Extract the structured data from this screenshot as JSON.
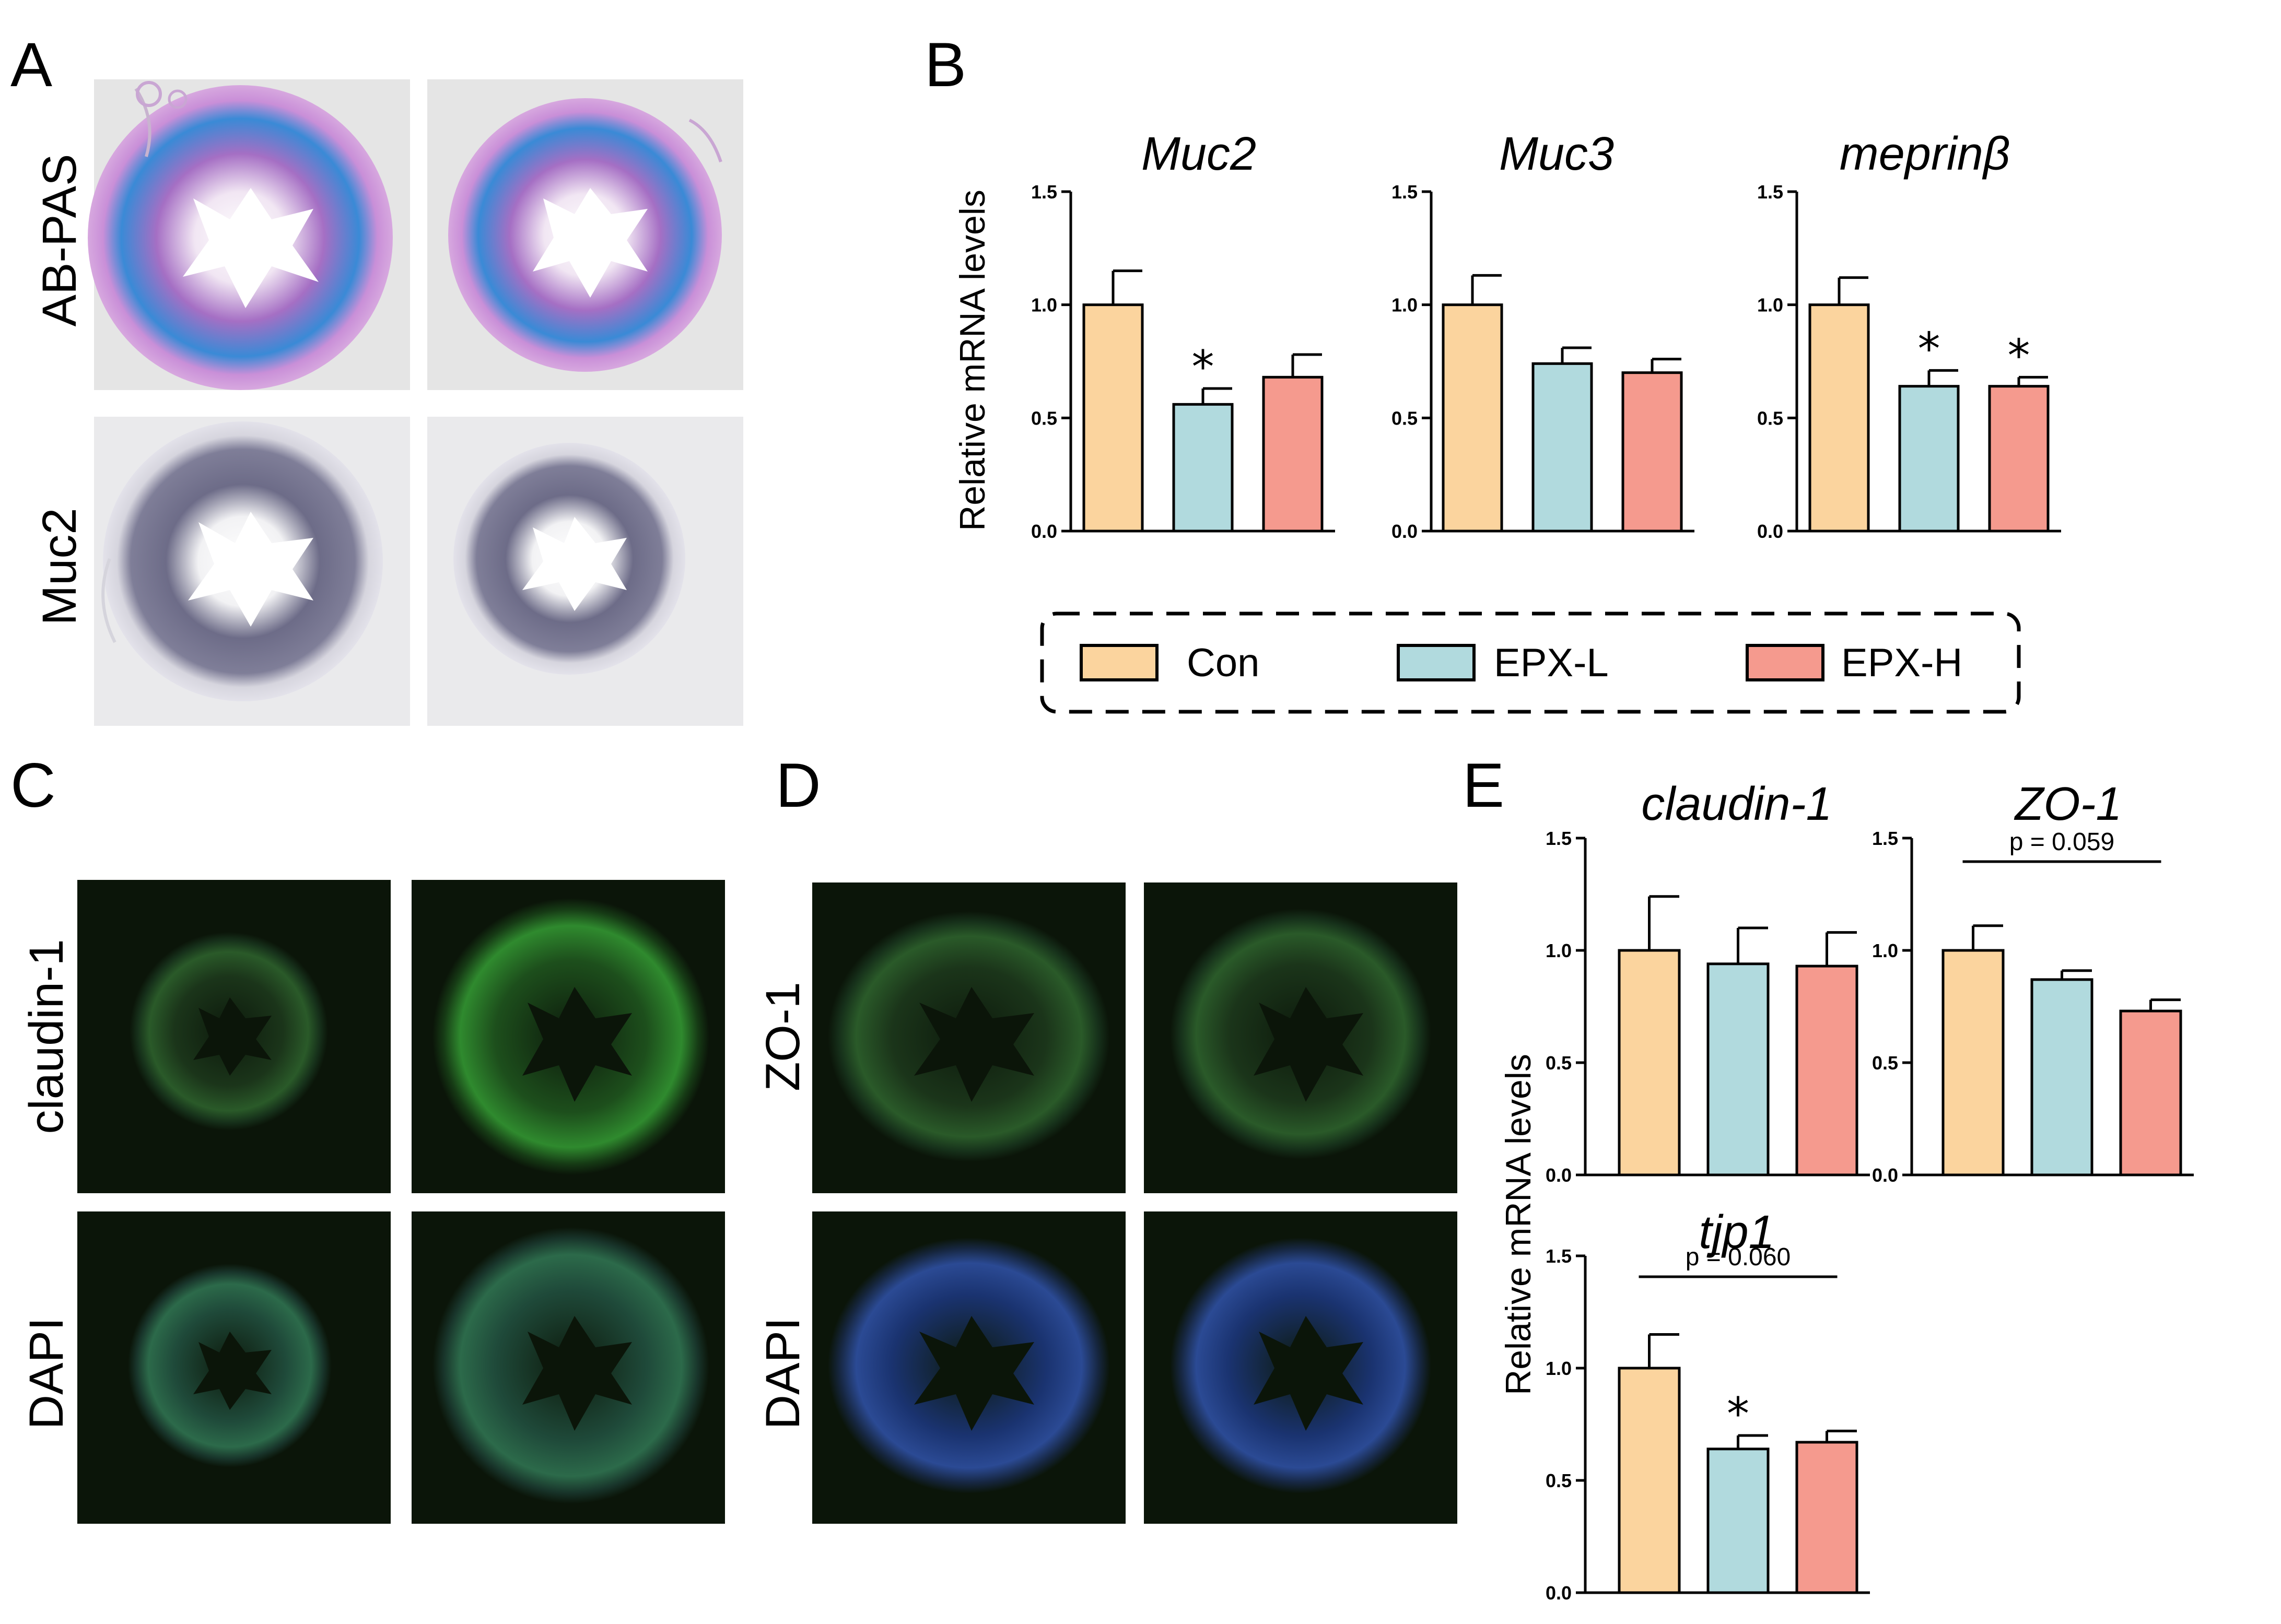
{
  "panels": {
    "A": {
      "letter": "A",
      "rows": [
        "AB-PAS",
        "Muc2"
      ]
    },
    "B": {
      "letter": "B"
    },
    "C": {
      "letter": "C",
      "rows": [
        "claudin-1",
        "DAPI"
      ]
    },
    "D": {
      "letter": "D",
      "rows": [
        "ZO-1",
        "DAPI"
      ]
    },
    "E": {
      "letter": "E"
    }
  },
  "y_axis_label": "Relative mRNA levels",
  "legend": {
    "entries": [
      {
        "label": "Con",
        "color": "#fbd49e"
      },
      {
        "label": "EPX-L",
        "color": "#b1dade"
      },
      {
        "label": "EPX-H",
        "color": "#f59a8e"
      }
    ]
  },
  "colors": {
    "con": "#fbd49e",
    "epxl": "#b1dade",
    "epxh": "#f59a8e",
    "abpas_bg": "#e6e6e6",
    "abpas_tissue": "#d49fdb",
    "abpas_stain": "#2f8ad8",
    "muc2_bg": "#ebebed",
    "muc2_tissue": "#7d7c94",
    "if_bg": "#0b1509",
    "if_green": "#39a13a",
    "if_blue": "#2b5aa8"
  },
  "chart_data": [
    {
      "type": "bar",
      "title": "Muc2",
      "categories": [
        "Con",
        "EPX-L",
        "EPX-H"
      ],
      "values": [
        1.0,
        0.56,
        0.68
      ],
      "errors": [
        0.15,
        0.07,
        0.1
      ],
      "significance": [
        "",
        "*",
        ""
      ],
      "ylim": [
        0,
        1.5
      ],
      "yticks": [
        "0.0",
        "0.5",
        "1.0",
        "1.5"
      ],
      "ylabel": "Relative mRNA levels"
    },
    {
      "type": "bar",
      "title": "Muc3",
      "categories": [
        "Con",
        "EPX-L",
        "EPX-H"
      ],
      "values": [
        1.0,
        0.74,
        0.7
      ],
      "errors": [
        0.13,
        0.07,
        0.06
      ],
      "significance": [
        "",
        "",
        ""
      ],
      "ylim": [
        0,
        1.5
      ],
      "yticks": [
        "0.0",
        "0.5",
        "1.0",
        "1.5"
      ]
    },
    {
      "type": "bar",
      "title": "meprinβ",
      "categories": [
        "Con",
        "EPX-L",
        "EPX-H"
      ],
      "values": [
        1.0,
        0.64,
        0.64
      ],
      "errors": [
        0.12,
        0.07,
        0.04
      ],
      "significance": [
        "",
        "*",
        "*"
      ],
      "ylim": [
        0,
        1.5
      ],
      "yticks": [
        "0.0",
        "0.5",
        "1.0",
        "1.5"
      ]
    },
    {
      "type": "bar",
      "title": "claudin-1",
      "categories": [
        "Con",
        "EPX-L",
        "EPX-H"
      ],
      "values": [
        1.0,
        0.94,
        0.93
      ],
      "errors": [
        0.24,
        0.16,
        0.15
      ],
      "significance": [
        "",
        "",
        ""
      ],
      "ylim": [
        0,
        1.5
      ],
      "yticks": [
        "0.0",
        "0.5",
        "1.0",
        "1.5"
      ],
      "ylabel": "Relative mRNA levels"
    },
    {
      "type": "bar",
      "title": "ZO-1",
      "categories": [
        "Con",
        "EPX-L",
        "EPX-H"
      ],
      "values": [
        1.0,
        0.87,
        0.73
      ],
      "errors": [
        0.11,
        0.04,
        0.05
      ],
      "significance": [
        "",
        "",
        ""
      ],
      "ylim": [
        0,
        1.5
      ],
      "yticks": [
        "0.0",
        "0.5",
        "1.0",
        "1.5"
      ],
      "comparison": {
        "text": "p = 0.059"
      }
    },
    {
      "type": "bar",
      "title": "tjp1",
      "categories": [
        "Con",
        "EPX-L",
        "EPX-H"
      ],
      "values": [
        1.0,
        0.64,
        0.67
      ],
      "errors": [
        0.15,
        0.06,
        0.05
      ],
      "significance": [
        "",
        "*",
        ""
      ],
      "ylim": [
        0,
        1.5
      ],
      "yticks": [
        "0.0",
        "0.5",
        "1.0",
        "1.5"
      ],
      "comparison": {
        "text": "p = 0.060"
      }
    }
  ]
}
